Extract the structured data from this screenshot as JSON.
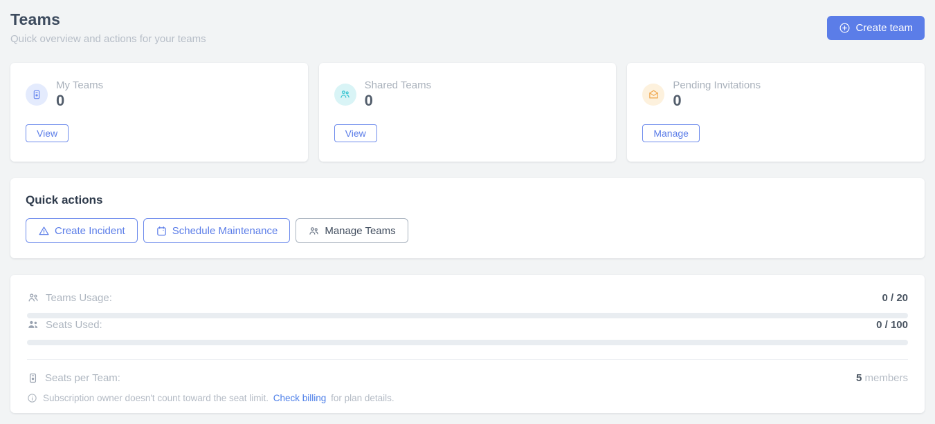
{
  "header": {
    "title": "Teams",
    "subtitle": "Quick overview and actions for your teams",
    "create_button": {
      "label": "Create team",
      "icon": "plus-circle-icon"
    }
  },
  "stat_cards": [
    {
      "label": "My Teams",
      "value": "0",
      "action_label": "View",
      "icon": "contact-badge-icon",
      "icon_color": "#6a89ef",
      "icon_bg": "#e4ebfd"
    },
    {
      "label": "Shared Teams",
      "value": "0",
      "action_label": "View",
      "icon": "users-group-icon",
      "icon_color": "#3ec6d2",
      "icon_bg": "#d9f4f6"
    },
    {
      "label": "Pending Invitations",
      "value": "0",
      "action_label": "Manage",
      "icon": "envelope-open-icon",
      "icon_color": "#f0ab55",
      "icon_bg": "#fdf1dd"
    }
  ],
  "quick_actions": {
    "title": "Quick actions",
    "buttons": [
      {
        "label": "Create Incident",
        "icon": "warning-triangle-icon",
        "style": "primary-outline"
      },
      {
        "label": "Schedule Maintenance",
        "icon": "calendar-icon",
        "style": "primary-outline"
      },
      {
        "label": "Manage Teams",
        "icon": "users-group-icon",
        "style": "neutral-outline"
      }
    ]
  },
  "usage": {
    "rows": [
      {
        "label": "Teams Usage:",
        "icon": "users-group-outline-icon",
        "value": "0 / 20",
        "progress_pct": 0
      },
      {
        "label": "Seats Used:",
        "icon": "users-filled-icon",
        "value": "0 / 100",
        "progress_pct": 0
      }
    ],
    "seats_per_team": {
      "label": "Seats per Team:",
      "icon": "contact-badge-icon",
      "value": "5",
      "value_suffix": " members"
    },
    "note": {
      "icon": "info-circle-icon",
      "text_before": "Subscription owner doesn't count toward the seat limit.",
      "link_label": "Check billing",
      "text_after": "for plan details."
    }
  },
  "colors": {
    "accent_blue": "#5b7de8",
    "teal": "#3ec6d2",
    "orange": "#f0ab55",
    "link_blue": "#4a7de8",
    "page_bg": "#f2f4f5"
  }
}
